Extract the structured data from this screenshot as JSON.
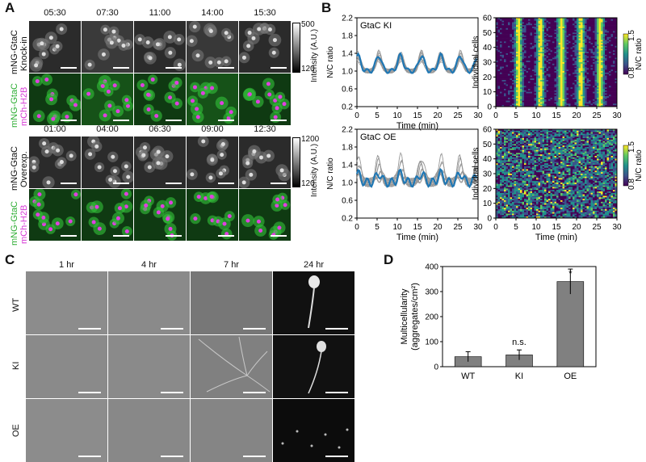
{
  "panels": {
    "a": "A",
    "b": "B",
    "c": "C",
    "d": "D"
  },
  "panelA": {
    "top_times": [
      "05:30",
      "07:30",
      "11:00",
      "14:00",
      "15:30"
    ],
    "bottom_times": [
      "01:00",
      "04:00",
      "06:30",
      "09:00",
      "12:30"
    ],
    "top_label_line1": "mNG-GtaC",
    "top_label_line2": "Knock-in",
    "merge_label_line1": "mNG-GtaC",
    "merge_label_line2": "mCh-H2B",
    "bottom_label_line1": "mNG-GtaC",
    "bottom_label_line2": "Overexp.",
    "cbar_top": {
      "max": "500",
      "min": "120",
      "label": "Intensity (A.U.)"
    },
    "cbar_bottom": {
      "max": "1200",
      "min": "120",
      "label": "Intensity (A.U.)"
    },
    "colors": {
      "green": "#33c23a",
      "magenta": "#e040e0"
    }
  },
  "panelB": {
    "ki_title": "GtaC KI",
    "oe_title": "GtaC OE",
    "ylabel": "N/C ratio",
    "xlabel": "Time (min)",
    "yticks": [
      "2.2",
      "1.8",
      "1.4",
      "1.0",
      "0.6",
      "0.2"
    ],
    "xticks": [
      "0",
      "5",
      "10",
      "15",
      "20",
      "25",
      "30"
    ],
    "heat_ylabel": "Individual cells",
    "heat_yticks": [
      "60",
      "50",
      "40",
      "30",
      "20",
      "10",
      "0"
    ],
    "heat_cbar_max": "1.5",
    "heat_cbar_min": "0.8",
    "heat_cbar_label": "N/C ratio",
    "mean_color": "#1f77b4"
  },
  "panelC": {
    "times": [
      "1 hr",
      "4 hr",
      "7 hr",
      "24 hr"
    ],
    "rows": [
      "WT",
      "KI",
      "OE"
    ]
  },
  "chart_data": {
    "type": "bar",
    "categories": [
      "WT",
      "KI",
      "OE"
    ],
    "values": [
      40,
      47,
      340
    ],
    "errors": [
      20,
      20,
      50
    ],
    "annotations": [
      "",
      "n.s.",
      "*"
    ],
    "ylabel_line1": "Multicellularity",
    "ylabel_line2": "(aggregates/cm²)",
    "yticks": [
      "400",
      "300",
      "200",
      "100",
      "0"
    ],
    "ylim": [
      0,
      400
    ],
    "bar_color": "#808080"
  }
}
